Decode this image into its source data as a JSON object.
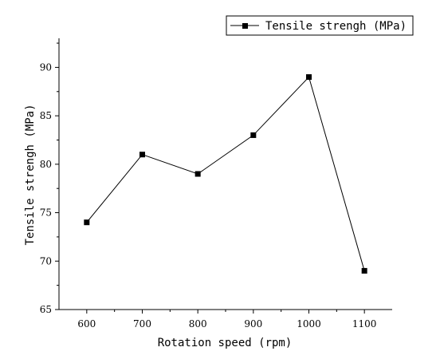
{
  "chart_data": {
    "type": "line",
    "xlabel": "Rotation speed (rpm)",
    "ylabel": "Tensile strengh (MPa)",
    "x": [
      600,
      700,
      800,
      900,
      1000,
      1100
    ],
    "xticks": [
      600,
      700,
      800,
      900,
      1000,
      1100
    ],
    "xlim": [
      550,
      1150
    ],
    "ylim": [
      65,
      93
    ],
    "yticks": [
      65,
      70,
      75,
      80,
      85,
      90
    ],
    "series": [
      {
        "name": "Tensile strengh (MPa)",
        "values": [
          74,
          81,
          79,
          83,
          89,
          69
        ],
        "color": "#000000",
        "marker": "square"
      }
    ],
    "grid": false,
    "legend": "top-right"
  }
}
